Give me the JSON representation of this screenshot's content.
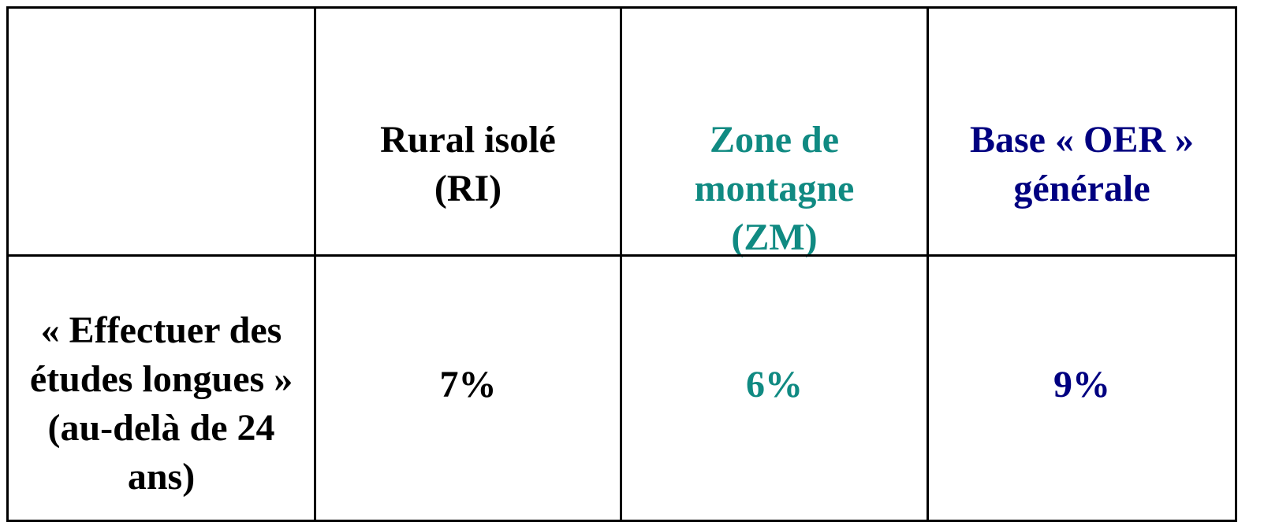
{
  "table": {
    "headers": [
      "Rural isolé (RI)",
      "Zone de montagne (ZM)",
      "Base « OER » générale"
    ],
    "rows": [
      [
        "« Effectuer des études longues » (au-delà de 24 ans)",
        "7%",
        "6%",
        "9%"
      ]
    ]
  }
}
